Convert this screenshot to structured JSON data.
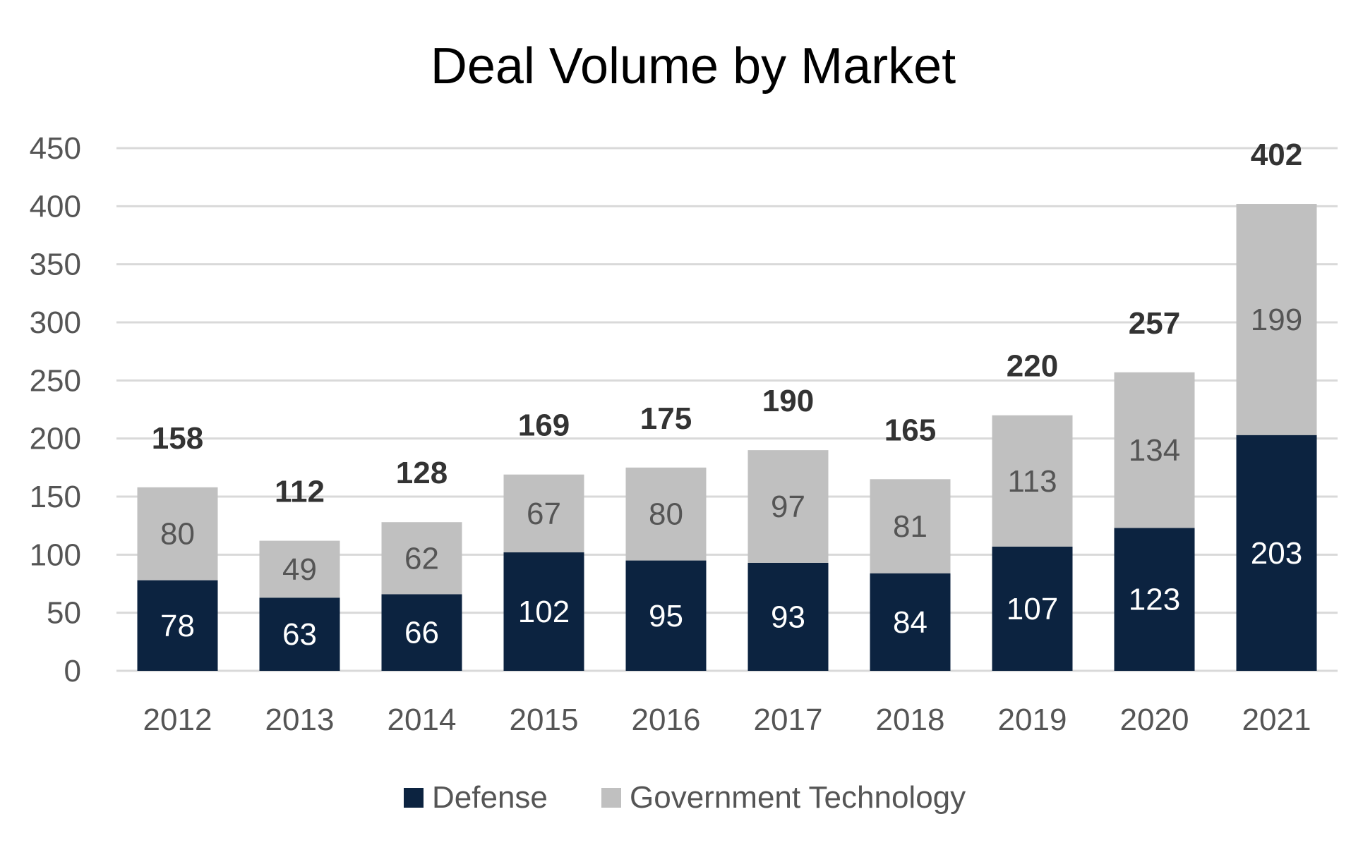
{
  "chart_data": {
    "type": "bar",
    "stacked": true,
    "title": "Deal Volume by Market",
    "xlabel": "",
    "ylabel": "",
    "categories": [
      "2012",
      "2013",
      "2014",
      "2015",
      "2016",
      "2017",
      "2018",
      "2019",
      "2020",
      "2021"
    ],
    "series": [
      {
        "name": "Defense",
        "color": "#0c2340",
        "label_color": "#ffffff",
        "values": [
          78,
          63,
          66,
          102,
          95,
          93,
          84,
          107,
          123,
          203
        ]
      },
      {
        "name": "Government Technology",
        "color": "#c0c0c0",
        "label_color": "#555555",
        "values": [
          80,
          49,
          62,
          67,
          80,
          97,
          81,
          113,
          134,
          199
        ]
      }
    ],
    "totals": [
      158,
      112,
      128,
      169,
      175,
      190,
      165,
      220,
      257,
      402
    ],
    "ylim": [
      0,
      450
    ],
    "yticks": [
      0,
      50,
      100,
      150,
      200,
      250,
      300,
      350,
      400,
      450
    ],
    "grid": true,
    "legend_position": "bottom"
  }
}
